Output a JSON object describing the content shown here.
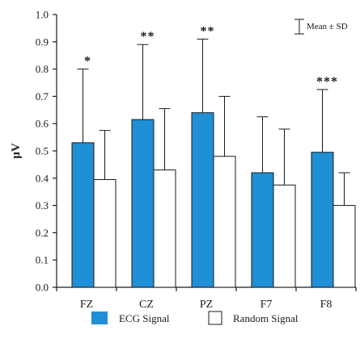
{
  "chart_data": {
    "type": "bar",
    "categories": [
      "FZ",
      "CZ",
      "PZ",
      "F7",
      "F8"
    ],
    "series": [
      {
        "name": "ECG Signal",
        "values": [
          0.53,
          0.615,
          0.64,
          0.42,
          0.495
        ],
        "sd_upper": [
          0.8,
          0.89,
          0.91,
          0.625,
          0.725
        ],
        "color": "#1f8fd6"
      },
      {
        "name": "Random Signal",
        "values": [
          0.395,
          0.43,
          0.48,
          0.375,
          0.3
        ],
        "sd_upper": [
          0.575,
          0.655,
          0.7,
          0.58,
          0.42
        ],
        "color": "#ffffff"
      }
    ],
    "annotations": [
      "*",
      "**",
      "**",
      "",
      "***"
    ],
    "ylabel": "μV",
    "xlabel": "",
    "title": "",
    "ylim": [
      0,
      1.0
    ],
    "yticks": [
      "0.0",
      "0.1",
      "0.2",
      "0.3",
      "0.4",
      "0.5",
      "0.6",
      "0.7",
      "0.8",
      "0.9",
      "1.0"
    ],
    "error_bar_legend": "Mean ± SD",
    "legend_position": "bottom",
    "grid": false,
    "bar_edge_color": "#1a1a1a"
  }
}
